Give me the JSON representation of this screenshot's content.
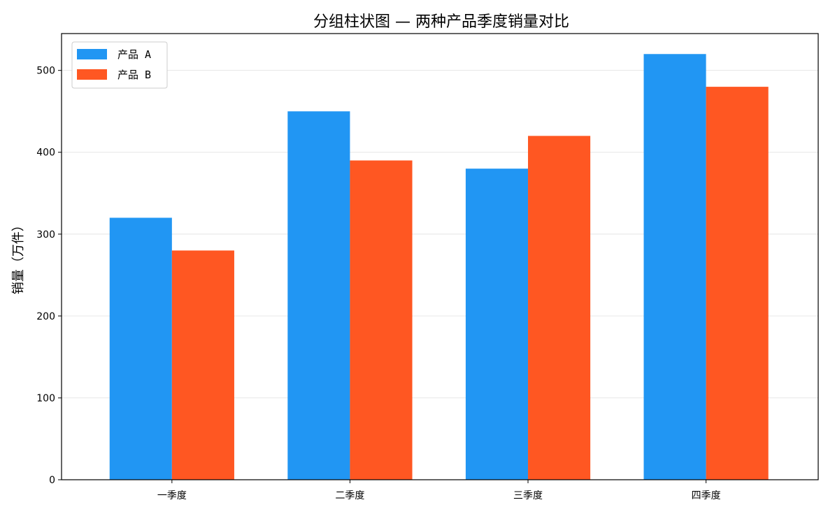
{
  "chart_data": {
    "type": "bar",
    "title": "分组柱状图 — 两种产品季度销量对比",
    "xlabel": "",
    "ylabel": "销量（万件）",
    "categories": [
      "一季度",
      "二季度",
      "三季度",
      "四季度"
    ],
    "series": [
      {
        "name": "产品 A",
        "color": "#2196F3",
        "values": [
          320,
          450,
          380,
          520
        ]
      },
      {
        "name": "产品 B",
        "color": "#FF5722",
        "values": [
          280,
          390,
          420,
          480
        ]
      }
    ],
    "ylim": [
      0,
      545
    ],
    "yticks": [
      0,
      100,
      200,
      300,
      400,
      500
    ],
    "grid": "y",
    "legend_position": "top-left"
  }
}
